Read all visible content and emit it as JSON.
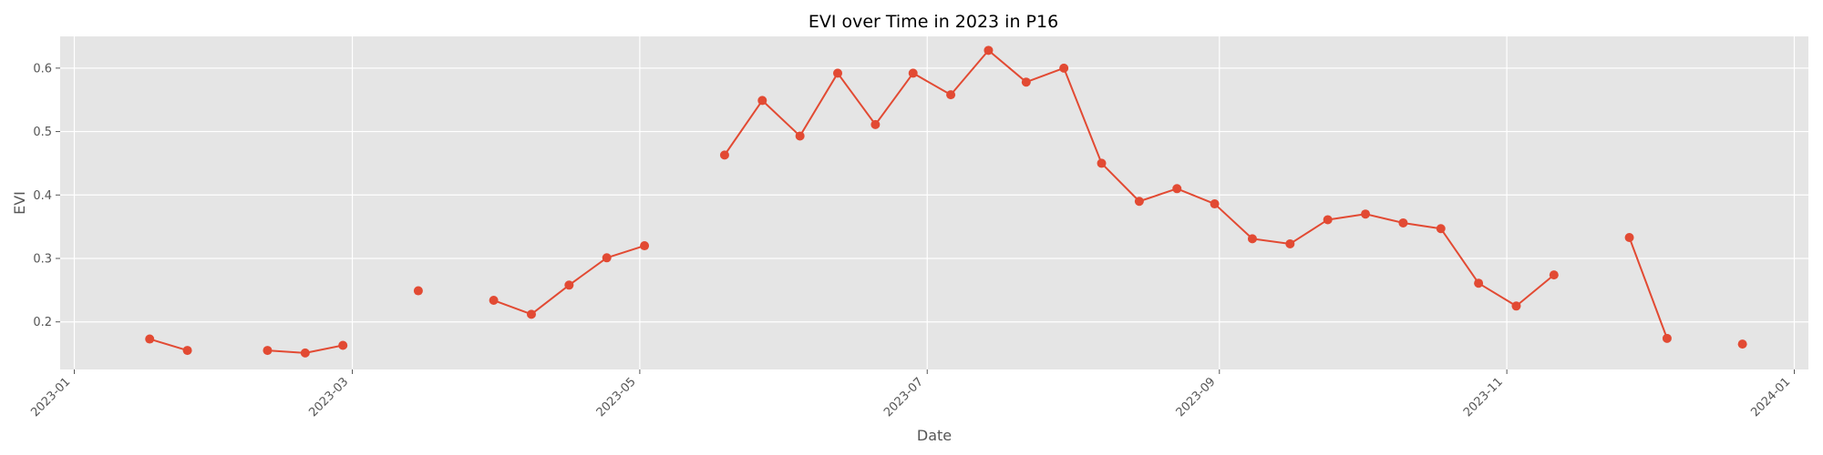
{
  "chart_data": {
    "type": "line",
    "title": "EVI over Time in 2023 in P16",
    "xlabel": "Date",
    "ylabel": "EVI",
    "xlim": [
      "2022-12-29",
      "2024-01-04"
    ],
    "ylim": [
      0.125,
      0.65
    ],
    "grid": true,
    "x_ticks": [
      "2023-01",
      "2023-03",
      "2023-05",
      "2023-07",
      "2023-09",
      "2023-11",
      "2024-01"
    ],
    "y_ticks": [
      "0.2",
      "0.3",
      "0.4",
      "0.5",
      "0.6"
    ],
    "colors": {
      "series": "#E24A33",
      "plot_bg": "#E5E5E5",
      "grid": "#FFFFFF"
    },
    "series": [
      {
        "segments": [
          [
            [
              "2023-01-17",
              0.173
            ],
            [
              "2023-01-25",
              0.155
            ]
          ],
          [
            [
              "2023-02-11",
              0.155
            ],
            [
              "2023-02-19",
              0.151
            ],
            [
              "2023-02-27",
              0.163
            ]
          ],
          [
            [
              "2023-03-15",
              0.249
            ]
          ],
          [
            [
              "2023-03-31",
              0.234
            ],
            [
              "2023-04-08",
              0.212
            ],
            [
              "2023-04-16",
              0.258
            ],
            [
              "2023-04-24",
              0.301
            ],
            [
              "2023-05-02",
              0.32
            ]
          ],
          [
            [
              "2023-05-19",
              0.463
            ],
            [
              "2023-05-27",
              0.549
            ],
            [
              "2023-06-04",
              0.493
            ],
            [
              "2023-06-12",
              0.592
            ],
            [
              "2023-06-20",
              0.511
            ],
            [
              "2023-06-28",
              0.592
            ],
            [
              "2023-07-06",
              0.558
            ],
            [
              "2023-07-14",
              0.628
            ],
            [
              "2023-07-22",
              0.578
            ],
            [
              "2023-07-30",
              0.6
            ],
            [
              "2023-08-07",
              0.45
            ],
            [
              "2023-08-15",
              0.39
            ],
            [
              "2023-08-23",
              0.41
            ],
            [
              "2023-08-31",
              0.386
            ],
            [
              "2023-09-08",
              0.331
            ],
            [
              "2023-09-16",
              0.323
            ],
            [
              "2023-09-24",
              0.361
            ],
            [
              "2023-10-02",
              0.37
            ],
            [
              "2023-10-10",
              0.356
            ],
            [
              "2023-10-18",
              0.347
            ],
            [
              "2023-10-26",
              0.261
            ],
            [
              "2023-11-03",
              0.225
            ],
            [
              "2023-11-11",
              0.274
            ]
          ],
          [
            [
              "2023-11-27",
              0.333
            ],
            [
              "2023-12-05",
              0.174
            ]
          ],
          [
            [
              "2023-12-21",
              0.165
            ]
          ]
        ]
      }
    ]
  }
}
